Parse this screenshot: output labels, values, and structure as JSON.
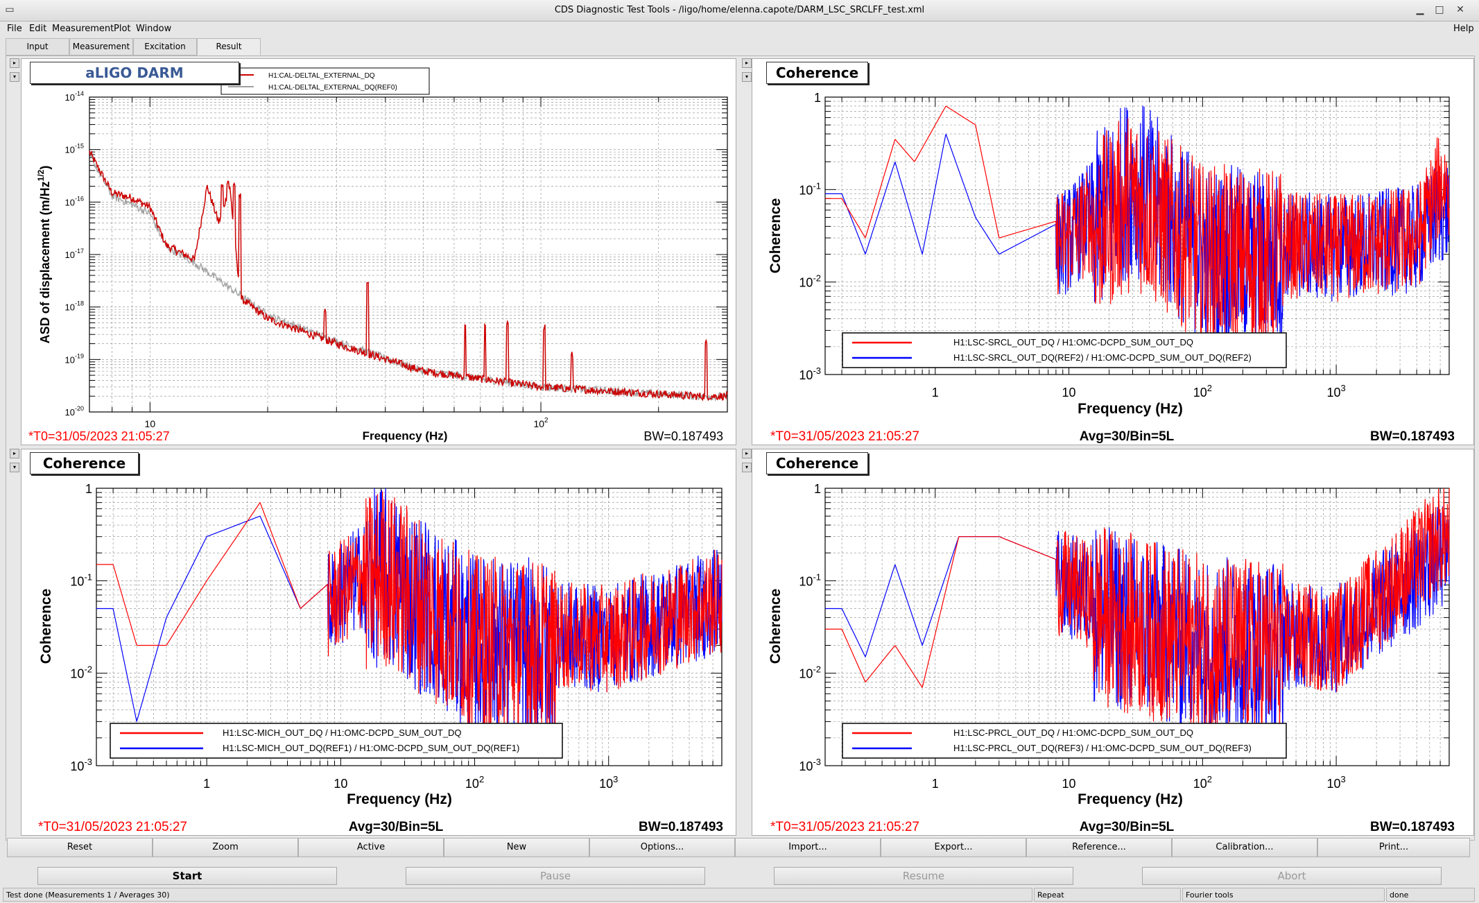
{
  "window": {
    "title": "CDS Diagnostic Test Tools - /ligo/home/elenna.capote/DARM_LSC_SRCLFF_test.xml"
  },
  "menu": {
    "file": "File",
    "edit": "Edit",
    "measurement": "Measurement",
    "plot": "Plot",
    "window": "Window",
    "help": "Help"
  },
  "tabs": [
    "Input",
    "Measurement",
    "Excitation",
    "Result"
  ],
  "plots": {
    "p1": {
      "label": "aLIGO DARM",
      "legend": [
        "H1:CAL-DELTAL_EXTERNAL_DQ",
        "H1:CAL-DELTAL_EXTERNAL_DQ(REF0)"
      ],
      "ylabel_pre": "ASD of displacement (m/Hz",
      "ylabel_sup": "1/2",
      "ylabel_post": ")",
      "xlabel": "Frequency (Hz)",
      "t0": "*T0=31/05/2023 21:05:27",
      "avg": "",
      "bw": "BW=0.187493",
      "yticks": [
        "10",
        "10",
        "10",
        "10",
        "10",
        "10",
        "10"
      ],
      "yexp": [
        "-14",
        "-15",
        "-16",
        "-17",
        "-18",
        "-19",
        "-20"
      ],
      "xticks": [
        {
          "base": "10",
          "exp": ""
        },
        {
          "base": "10",
          "exp": "2"
        }
      ]
    },
    "p2": {
      "label": "Coherence",
      "legend": [
        "H1:LSC-SRCL_OUT_DQ / H1:OMC-DCPD_SUM_OUT_DQ",
        "H1:LSC-SRCL_OUT_DQ(REF2) / H1:OMC-DCPD_SUM_OUT_DQ(REF2)"
      ],
      "ylabel": "Coherence",
      "xlabel": "Frequency (Hz)",
      "t0": "*T0=31/05/2023 21:05:27",
      "avg": "Avg=30/Bin=5L",
      "bw": "BW=0.187493"
    },
    "p3": {
      "label": "Coherence",
      "legend": [
        "H1:LSC-MICH_OUT_DQ / H1:OMC-DCPD_SUM_OUT_DQ",
        "H1:LSC-MICH_OUT_DQ(REF1) / H1:OMC-DCPD_SUM_OUT_DQ(REF1)"
      ],
      "ylabel": "Coherence",
      "xlabel": "Frequency (Hz)",
      "t0": "*T0=31/05/2023 21:05:27",
      "avg": "Avg=30/Bin=5L",
      "bw": "BW=0.187493"
    },
    "p4": {
      "label": "Coherence",
      "legend": [
        "H1:LSC-PRCL_OUT_DQ / H1:OMC-DCPD_SUM_OUT_DQ",
        "H1:LSC-PRCL_OUT_DQ(REF3) / H1:OMC-DCPD_SUM_OUT_DQ(REF3)"
      ],
      "ylabel": "Coherence",
      "xlabel": "Frequency (Hz)",
      "t0": "*T0=31/05/2023 21:05:27",
      "avg": "Avg=30/Bin=5L",
      "bw": "BW=0.187493"
    },
    "coh_yticks": [
      {
        "base": "1",
        "exp": ""
      },
      {
        "base": "10",
        "exp": "-1"
      },
      {
        "base": "10",
        "exp": "-2"
      },
      {
        "base": "10",
        "exp": "-3"
      }
    ],
    "coh_xticks": [
      {
        "base": "1",
        "exp": ""
      },
      {
        "base": "10",
        "exp": ""
      },
      {
        "base": "10",
        "exp": "2"
      },
      {
        "base": "10",
        "exp": "3"
      }
    ]
  },
  "colors": {
    "red": "#ff0000",
    "blue": "#0000ff",
    "ref_gray": "#a0a0a0",
    "darm_red": "#cc0000"
  },
  "buttons": [
    "Reset",
    "Zoom",
    "Active",
    "New",
    "Options...",
    "Import...",
    "Export...",
    "Reference...",
    "Calibration...",
    "Print..."
  ],
  "controls": {
    "start": "Start",
    "pause": "Pause",
    "resume": "Resume",
    "abort": "Abort"
  },
  "status": {
    "left": "Test done (Measurements 1 / Averages 30)",
    "repeat": "Repeat",
    "fourier": "Fourier tools",
    "right": "done"
  },
  "chart_data": [
    {
      "type": "line",
      "title": "aLIGO DARM",
      "xlabel": "Frequency (Hz)",
      "ylabel": "ASD of displacement (m/Hz^1/2)",
      "xscale": "log",
      "yscale": "log",
      "xlim": [
        7,
        300
      ],
      "ylim": [
        1e-20,
        1e-14
      ],
      "series": [
        {
          "name": "H1:CAL-DELTAL_EXTERNAL_DQ",
          "x": [
            7,
            8,
            9,
            10,
            11,
            13,
            14,
            15,
            16,
            17,
            20,
            30,
            50,
            100,
            150,
            250
          ],
          "y": [
            9e-16,
            1.5e-16,
            1.2e-16,
            8e-17,
            1.5e-17,
            8e-18,
            2e-16,
            4e-17,
            2e-16,
            1.5e-18,
            6e-19,
            2e-19,
            6e-20,
            3e-20,
            2.5e-20,
            2e-20
          ]
        },
        {
          "name": "H1:CAL-DELTAL_EXTERNAL_DQ(REF0)",
          "x": [
            7,
            8,
            9,
            10,
            11,
            13,
            20,
            30,
            50,
            100,
            250
          ],
          "y": [
            8e-16,
            1.3e-16,
            9e-17,
            6e-17,
            1.4e-17,
            7e-18,
            7e-19,
            2.2e-19,
            6e-20,
            3e-20,
            2e-20
          ]
        }
      ]
    },
    {
      "type": "line",
      "title": "Coherence",
      "xlabel": "Frequency (Hz)",
      "ylabel": "Coherence",
      "xscale": "log",
      "yscale": "log",
      "xlim": [
        0.15,
        7000
      ],
      "ylim": [
        0.001,
        1
      ],
      "series": [
        {
          "name": "H1:LSC-SRCL_OUT_DQ / H1:OMC-DCPD_SUM_OUT_DQ",
          "x": [
            0.2,
            0.3,
            0.5,
            0.7,
            1.2,
            2,
            3,
            10,
            30,
            100,
            1000,
            4000,
            6000
          ],
          "y": [
            0.08,
            0.03,
            0.35,
            0.2,
            0.8,
            0.5,
            0.03,
            0.05,
            0.2,
            0.05,
            0.04,
            0.05,
            0.2
          ]
        },
        {
          "name": "H1:LSC-SRCL_OUT_DQ(REF2) / H1:OMC-DCPD_SUM_OUT_DQ(REF2)",
          "x": [
            0.2,
            0.3,
            0.5,
            0.8,
            1.2,
            2,
            3,
            10,
            30,
            100,
            1000,
            4000,
            6000
          ],
          "y": [
            0.09,
            0.02,
            0.2,
            0.02,
            0.4,
            0.05,
            0.02,
            0.05,
            0.3,
            0.05,
            0.04,
            0.05,
            0.1
          ]
        }
      ]
    },
    {
      "type": "line",
      "title": "Coherence",
      "xlabel": "Frequency (Hz)",
      "ylabel": "Coherence",
      "xscale": "log",
      "yscale": "log",
      "xlim": [
        0.15,
        7000
      ],
      "ylim": [
        0.001,
        1
      ],
      "series": [
        {
          "name": "H1:LSC-MICH_OUT_DQ / H1:OMC-DCPD_SUM_OUT_DQ",
          "x": [
            0.2,
            0.3,
            0.5,
            1,
            2.5,
            5,
            20,
            100,
            1000,
            6000
          ],
          "y": [
            0.15,
            0.02,
            0.02,
            0.1,
            0.7,
            0.05,
            0.3,
            0.05,
            0.04,
            0.1
          ]
        },
        {
          "name": "H1:LSC-MICH_OUT_DQ(REF1) / H1:OMC-DCPD_SUM_OUT_DQ(REF1)",
          "x": [
            0.2,
            0.3,
            0.5,
            1,
            2.5,
            5,
            20,
            100,
            1000,
            6000
          ],
          "y": [
            0.05,
            0.003,
            0.04,
            0.3,
            0.5,
            0.05,
            0.3,
            0.05,
            0.04,
            0.1
          ]
        }
      ]
    },
    {
      "type": "line",
      "title": "Coherence",
      "xlabel": "Frequency (Hz)",
      "ylabel": "Coherence",
      "xscale": "log",
      "yscale": "log",
      "xlim": [
        0.15,
        7000
      ],
      "ylim": [
        0.001,
        1
      ],
      "series": [
        {
          "name": "H1:LSC-PRCL_OUT_DQ / H1:OMC-DCPD_SUM_OUT_DQ",
          "x": [
            0.2,
            0.3,
            0.5,
            0.8,
            1.5,
            3,
            20,
            100,
            1000,
            6000
          ],
          "y": [
            0.03,
            0.008,
            0.02,
            0.007,
            0.3,
            0.3,
            0.1,
            0.05,
            0.04,
            0.5
          ]
        },
        {
          "name": "H1:LSC-PRCL_OUT_DQ(REF3) / H1:OMC-DCPD_SUM_OUT_DQ(REF3)",
          "x": [
            0.2,
            0.3,
            0.5,
            0.8,
            1.5,
            3,
            20,
            100,
            1000,
            6000
          ],
          "y": [
            0.05,
            0.015,
            0.15,
            0.02,
            0.3,
            0.3,
            0.1,
            0.05,
            0.04,
            0.3
          ]
        }
      ]
    }
  ]
}
